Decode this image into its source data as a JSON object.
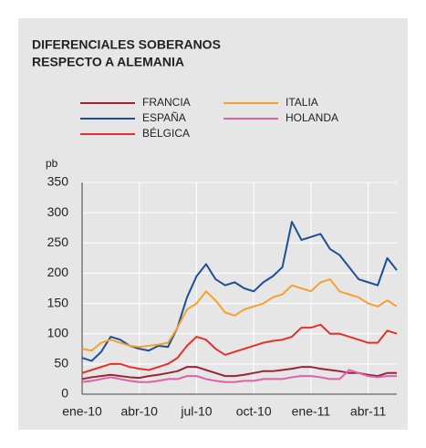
{
  "chart_data": {
    "type": "line",
    "title": [
      "DIFERENCIALES SOBERANOS",
      "RESPECTO A ALEMANIA"
    ],
    "y_label": "pb",
    "x": [
      0,
      0.5,
      1,
      1.5,
      2,
      2.5,
      3,
      3.5,
      4,
      4.5,
      5,
      5.5,
      6,
      6.5,
      7,
      7.5,
      8,
      8.5,
      9,
      9.5,
      10,
      10.5,
      11,
      11.5,
      12,
      12.5,
      13,
      13.5,
      14,
      14.5,
      15,
      15.5,
      16,
      16.5
    ],
    "xlim": [
      0,
      16.5
    ],
    "xticks": [
      {
        "value": 0,
        "label": "ene-10"
      },
      {
        "value": 3,
        "label": "abr-10"
      },
      {
        "value": 6,
        "label": "jul-10"
      },
      {
        "value": 9,
        "label": "oct-10"
      },
      {
        "value": 12,
        "label": "ene-11"
      },
      {
        "value": 15,
        "label": "abr-11"
      }
    ],
    "ylim": [
      0,
      350
    ],
    "yticks": [
      0,
      50,
      100,
      150,
      200,
      250,
      300,
      350
    ],
    "grid": true,
    "series": [
      {
        "name": "FRANCIA",
        "color": "#9b2335",
        "values": [
          25,
          28,
          30,
          32,
          30,
          28,
          27,
          30,
          32,
          35,
          38,
          45,
          45,
          40,
          35,
          30,
          30,
          32,
          35,
          38,
          38,
          40,
          42,
          45,
          45,
          42,
          40,
          38,
          35,
          35,
          32,
          30,
          35,
          35
        ]
      },
      {
        "name": "ESPAÑA",
        "color": "#1f4e96",
        "values": [
          60,
          55,
          70,
          95,
          90,
          80,
          75,
          72,
          80,
          78,
          110,
          160,
          195,
          215,
          190,
          180,
          185,
          175,
          170,
          185,
          195,
          210,
          285,
          255,
          260,
          265,
          240,
          230,
          210,
          190,
          185,
          180,
          225,
          205
        ]
      },
      {
        "name": "BÉLGICA",
        "color": "#e8302a",
        "values": [
          35,
          40,
          45,
          50,
          50,
          45,
          42,
          40,
          45,
          50,
          60,
          80,
          95,
          90,
          75,
          65,
          70,
          75,
          80,
          85,
          88,
          90,
          95,
          110,
          110,
          115,
          100,
          100,
          95,
          90,
          85,
          85,
          105,
          100
        ]
      },
      {
        "name": "ITALIA",
        "color": "#f5a033",
        "values": [
          75,
          72,
          85,
          90,
          85,
          80,
          78,
          80,
          82,
          85,
          110,
          140,
          150,
          170,
          155,
          135,
          130,
          140,
          145,
          150,
          160,
          165,
          180,
          175,
          170,
          185,
          190,
          170,
          165,
          160,
          150,
          145,
          155,
          145
        ]
      },
      {
        "name": "HOLANDA",
        "color": "#e060a8",
        "values": [
          20,
          22,
          25,
          28,
          25,
          22,
          20,
          20,
          22,
          25,
          25,
          30,
          30,
          25,
          22,
          20,
          20,
          22,
          22,
          25,
          25,
          25,
          28,
          30,
          30,
          28,
          25,
          25,
          40,
          35,
          30,
          28,
          30,
          30
        ]
      }
    ]
  }
}
